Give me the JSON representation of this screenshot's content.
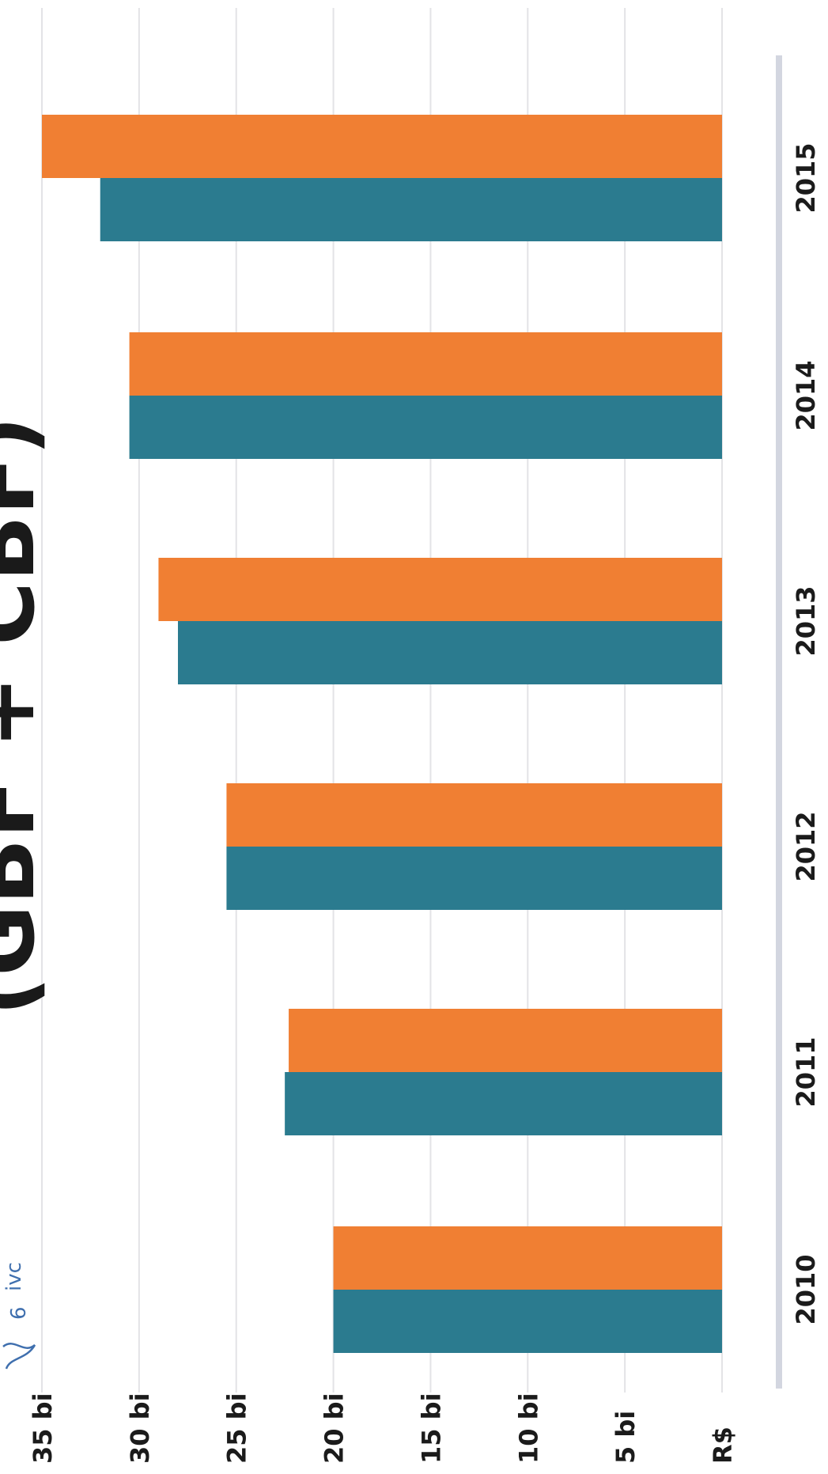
{
  "chart_data": {
    "type": "bar",
    "orientation": "horizontal",
    "title": "(GBF + CBF)",
    "categories": [
      "2010",
      "2011",
      "2012",
      "2013",
      "2014",
      "2015"
    ],
    "series": [
      {
        "values": [
          20.0,
          22.5,
          25.5,
          28.0,
          30.5,
          32.0
        ],
        "color": "#2b7b8f"
      },
      {
        "values": [
          20.0,
          22.3,
          25.5,
          29.0,
          30.5,
          35.0
        ],
        "color": "#f07f33"
      }
    ],
    "y_ticks": [
      "R$",
      "5 bi",
      "10 bi",
      "15 bi",
      "20 bi",
      "25 bi",
      "30 bi",
      "35 bi"
    ],
    "ylim": [
      0,
      35
    ],
    "grid": true,
    "rotation": "rotated 90 degrees clockwise"
  },
  "stamp": {
    "text": "ivc",
    "number": "6"
  }
}
